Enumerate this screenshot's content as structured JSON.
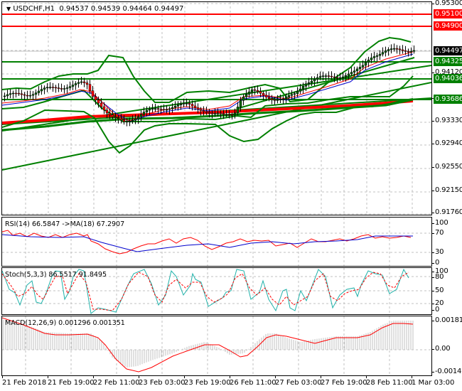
{
  "header": {
    "symbol_timeframe": "USDCHF,H1",
    "ohlc": "0.94537 0.94539 0.94464 0.94497",
    "dropdown_icon": "triangle-down-icon"
  },
  "price_scale": {
    "ticks": [
      "0.95300",
      "0.94120",
      "0.93720",
      "0.93330",
      "0.92940",
      "0.92550",
      "0.92150",
      "0.91760"
    ],
    "badges": [
      {
        "value": "0.95100",
        "color": "#ff0000",
        "kind": "resistance"
      },
      {
        "value": "0.94900",
        "color": "#ff0000",
        "kind": "resistance"
      },
      {
        "value": "0.94497",
        "color": "#000000",
        "kind": "current-price"
      },
      {
        "value": "0.94325",
        "color": "#008000",
        "kind": "support"
      },
      {
        "value": "0.94036",
        "color": "#008000",
        "kind": "support"
      },
      {
        "value": "0.93686",
        "color": "#008000",
        "kind": "support"
      }
    ]
  },
  "rsi": {
    "label": "RSI(14) 66.5847  ->MA(18) 67.2907",
    "ticks": [
      "100",
      "70",
      "30",
      "0"
    ],
    "line_color": "#ff0000",
    "ma_color": "#0000cc"
  },
  "stoch": {
    "label": "Stoch(5,3,3) 86.5517 91.8495",
    "ticks": [
      "100",
      "80",
      "50",
      "20",
      "0"
    ],
    "main_color": "#20b2aa",
    "signal_color": "#ff0000"
  },
  "macd": {
    "label": "MACD(12,26,9) 0.001296 0.001351",
    "ticks": [
      "0.001814",
      "0.00",
      "-0.001486"
    ],
    "histogram_color": "#c0c0c0",
    "signal_color": "#ff0000"
  },
  "time_axis": {
    "labels": [
      "21 Feb 2018",
      "21 Feb 19:00",
      "22 Feb 11:00",
      "23 Feb 03:00",
      "23 Feb 19:00",
      "26 Feb 11:00",
      "27 Feb 03:00",
      "27 Feb 19:00",
      "28 Feb 11:00",
      "1 Mar 03:00"
    ]
  },
  "colors": {
    "bull_candle": "#006400",
    "bear_candle": "#ff0000",
    "bollinger": "#008000",
    "support_line": "#008000",
    "resistance_line": "#ff0000",
    "long_ma": "#ff0000"
  }
}
